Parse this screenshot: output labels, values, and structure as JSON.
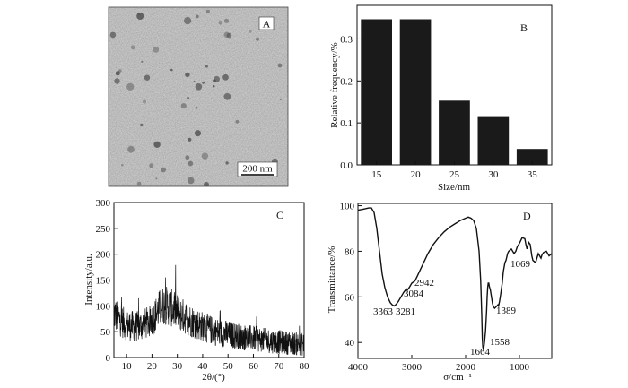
{
  "colors": {
    "ink": "#111111",
    "bar": "#1a1a1a",
    "tem_bg": "#8c8c8c",
    "tem_particle": "#4a4a4a"
  },
  "panels": {
    "A": {
      "label": "A",
      "scale_bar": "200 nm"
    },
    "B": {
      "label": "B"
    },
    "C": {
      "label": "C"
    },
    "D": {
      "label": "D"
    }
  },
  "chart_data": [
    {
      "panel": "B",
      "type": "bar",
      "categories": [
        "15",
        "20",
        "25",
        "30",
        "35"
      ],
      "values": [
        0.347,
        0.347,
        0.153,
        0.114,
        0.038
      ],
      "xlabel": "Size/nm",
      "ylabel": "Relative frequency/%",
      "ylim": [
        0,
        0.38
      ],
      "yticks": [
        0.0,
        0.1,
        0.2,
        0.3
      ],
      "ytick_labels": [
        "0.0",
        "0.1",
        "0.2",
        "0.3"
      ],
      "grid": false
    },
    {
      "panel": "C",
      "type": "line",
      "xlabel": "2θ/(°)",
      "ylabel": "Intensity/a.u.",
      "xlim": [
        5,
        80
      ],
      "ylim": [
        0,
        300
      ],
      "xticks": [
        10,
        20,
        30,
        40,
        50,
        60,
        70,
        80
      ],
      "yticks": [
        0,
        50,
        100,
        150,
        200,
        250,
        300
      ],
      "envelope": {
        "x": [
          5,
          7,
          10,
          15,
          20,
          23,
          25,
          27,
          30,
          35,
          40,
          45,
          50,
          55,
          60,
          65,
          70,
          75,
          80
        ],
        "y": [
          85,
          75,
          62,
          60,
          72,
          95,
          102,
          98,
          88,
          72,
          60,
          50,
          45,
          40,
          37,
          33,
          30,
          28,
          25
        ]
      },
      "noise_amplitude": 38,
      "grid": false
    },
    {
      "panel": "D",
      "type": "line",
      "xlabel": "σ/cm⁻¹",
      "ylabel": "Transmittance/%",
      "xlim": [
        4000,
        400
      ],
      "ylim": [
        33,
        101
      ],
      "xticks": [
        4000,
        3000,
        2000,
        1000
      ],
      "yticks": [
        40,
        60,
        80,
        100
      ],
      "x": [
        4000,
        3900,
        3800,
        3750,
        3700,
        3650,
        3600,
        3550,
        3500,
        3450,
        3400,
        3363,
        3330,
        3300,
        3281,
        3250,
        3200,
        3150,
        3100,
        3084,
        3050,
        3000,
        2942,
        2900,
        2800,
        2700,
        2600,
        2500,
        2400,
        2300,
        2200,
        2100,
        2000,
        1950,
        1900,
        1850,
        1800,
        1750,
        1720,
        1700,
        1690,
        1680,
        1670,
        1664,
        1650,
        1630,
        1610,
        1600,
        1590,
        1580,
        1570,
        1558,
        1540,
        1520,
        1500,
        1480,
        1460,
        1440,
        1420,
        1400,
        1389,
        1370,
        1350,
        1320,
        1300,
        1270,
        1250,
        1220,
        1200,
        1150,
        1100,
        1069,
        1040,
        1000,
        950,
        900,
        880,
        860,
        830,
        800,
        770,
        750,
        700,
        650,
        600,
        580,
        550,
        500,
        450,
        400
      ],
      "y": [
        98,
        98.5,
        99,
        99,
        97,
        90,
        80,
        70,
        64,
        60,
        57.5,
        56.5,
        56,
        56.5,
        57,
        58,
        60,
        62,
        63.5,
        63,
        64,
        66,
        67,
        69,
        74,
        79,
        83,
        86,
        88.5,
        90.5,
        92,
        93.5,
        94.5,
        95,
        94.5,
        93.5,
        90,
        80,
        67,
        52,
        42,
        38,
        37,
        37.5,
        40,
        45,
        54,
        60,
        64,
        66,
        66,
        64.5,
        63,
        60,
        57,
        55.5,
        55,
        55.5,
        56,
        56.5,
        56,
        58,
        61,
        66,
        71,
        75,
        76,
        79,
        80,
        81,
        79,
        80,
        82,
        83.5,
        86,
        85.5,
        83,
        81,
        84,
        83,
        78,
        76,
        75,
        79,
        77,
        78.5,
        79.5,
        80,
        78,
        79
      ],
      "annotations": [
        "3363",
        "3281",
        "3084",
        "2942",
        "1664",
        "1558",
        "1389",
        "1069"
      ],
      "grid": false
    }
  ]
}
